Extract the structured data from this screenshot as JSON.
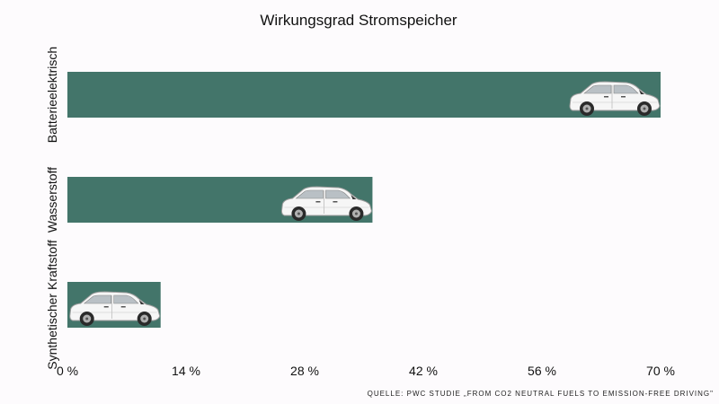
{
  "source_note": "QUELLE: PWC STUDIE „FROM CO2 NEUTRAL FUELS TO EMISSION-FREE DRIVING\"",
  "chart_data": {
    "type": "bar",
    "orientation": "horizontal",
    "title": "Wirkungsgrad Stromspeicher",
    "categories": [
      "Batterieelektrisch",
      "Wasserstoff",
      "Synthetischer Kraftstoff"
    ],
    "values": [
      70,
      36,
      11
    ],
    "x_ticks": [
      "0 %",
      "14 %",
      "28 %",
      "42 %",
      "56 %",
      "70 %"
    ],
    "xlim": [
      0,
      70
    ],
    "grid": false,
    "bar_color": "#43756a",
    "bar_end_icon": "car-icon"
  }
}
